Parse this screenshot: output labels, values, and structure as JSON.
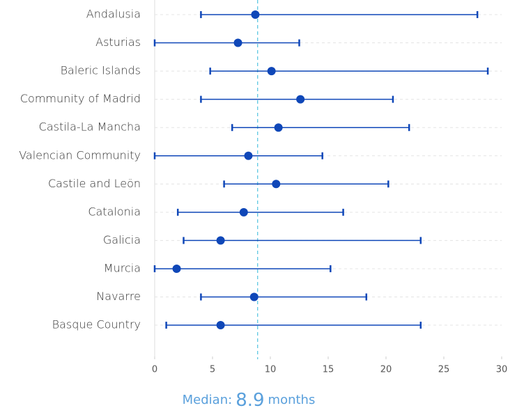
{
  "chart_data": {
    "type": "dot-range",
    "categories": [
      "Andalusia",
      "Asturias",
      "Baleric Islands",
      "Community of Madrid",
      "Castila-La Mancha",
      "Valencian Community",
      "Castile and Leön",
      "Catalonia",
      "Galicia",
      "Murcia",
      "Navarre",
      "Basque Country"
    ],
    "values": [
      8.7,
      7.2,
      10.1,
      12.6,
      10.7,
      8.1,
      10.5,
      7.7,
      5.7,
      1.9,
      8.6,
      5.7
    ],
    "low": [
      4,
      0,
      4.8,
      4,
      6.7,
      0,
      6,
      2,
      2.5,
      0,
      4,
      1
    ],
    "high": [
      27.9,
      12.5,
      28.8,
      20.6,
      22,
      14.5,
      20.2,
      16.3,
      23,
      15.2,
      18.3,
      23
    ],
    "color": "#0f47b8",
    "xlim": [
      0,
      30
    ],
    "xticks": [
      0,
      5,
      10,
      15,
      20,
      25,
      30
    ],
    "grid": true,
    "median": {
      "label": "Median:",
      "value": 8.9,
      "unit": "months",
      "color": "#4fc3e0"
    }
  }
}
